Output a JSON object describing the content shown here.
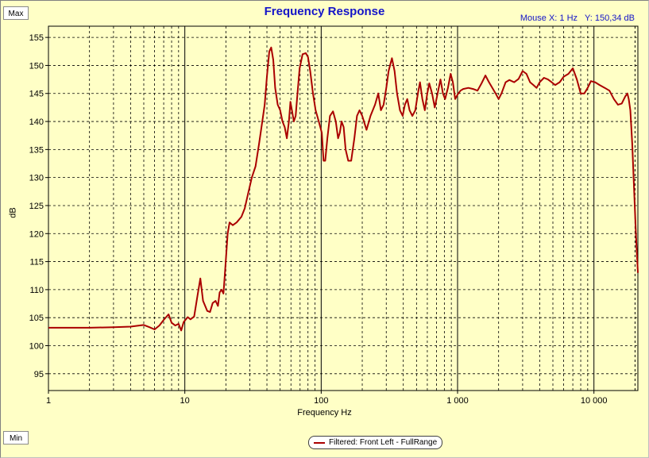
{
  "window": {
    "max_label": "Max",
    "min_label": "Min"
  },
  "readout": {
    "mouse_x": "Mouse X: 1 Hz",
    "mouse_y": "Y: 150,34 dB"
  },
  "legend": {
    "label": "Filtered: Front Left - FullRange",
    "color": "#aa0000"
  },
  "chart_data": {
    "type": "line",
    "title": "Frequency Response",
    "xlabel": "Frequency Hz",
    "ylabel": "dB",
    "x_scale": "log",
    "xlim": [
      1,
      21000
    ],
    "ylim": [
      92,
      157
    ],
    "grid": true,
    "x_tick_labels": [
      {
        "value": 1,
        "label": "1"
      },
      {
        "value": 10,
        "label": "10"
      },
      {
        "value": 100,
        "label": "100"
      },
      {
        "value": 1000,
        "label": "1 000"
      },
      {
        "value": 10000,
        "label": "10 000"
      }
    ],
    "y_ticks": [
      95,
      100,
      105,
      110,
      115,
      120,
      125,
      130,
      135,
      140,
      145,
      150,
      155
    ],
    "background": "#ffffc6",
    "series": [
      {
        "name": "Filtered: Front Left - FullRange",
        "color": "#aa0000",
        "points": [
          [
            1,
            103.2
          ],
          [
            2,
            103.2
          ],
          [
            3,
            103.3
          ],
          [
            4,
            103.4
          ],
          [
            5,
            103.7
          ],
          [
            5.5,
            103.3
          ],
          [
            6,
            102.9
          ],
          [
            6.5,
            103.6
          ],
          [
            7,
            104.6
          ],
          [
            7.6,
            105.6
          ],
          [
            8,
            104.1
          ],
          [
            8.5,
            103.6
          ],
          [
            9,
            103.9
          ],
          [
            9.4,
            102.7
          ],
          [
            9.8,
            104.2
          ],
          [
            10.5,
            105.1
          ],
          [
            11,
            104.7
          ],
          [
            11.7,
            105.2
          ],
          [
            12.4,
            109.0
          ],
          [
            13,
            112.0
          ],
          [
            13.6,
            108.0
          ],
          [
            14.6,
            106.2
          ],
          [
            15.3,
            106.0
          ],
          [
            16,
            107.6
          ],
          [
            16.8,
            108.0
          ],
          [
            17.5,
            107.1
          ],
          [
            18,
            109.5
          ],
          [
            18.6,
            110.0
          ],
          [
            19.2,
            109.3
          ],
          [
            19.7,
            113.0
          ],
          [
            20.6,
            120.0
          ],
          [
            21.3,
            122.0
          ],
          [
            22.5,
            121.5
          ],
          [
            24,
            122.0
          ],
          [
            26,
            123.0
          ],
          [
            27.5,
            124.5
          ],
          [
            29,
            127.0
          ],
          [
            31,
            130.0
          ],
          [
            33,
            132.0
          ],
          [
            35,
            136.0
          ],
          [
            37,
            140.0
          ],
          [
            38.5,
            143.0
          ],
          [
            40,
            148.0
          ],
          [
            41.6,
            152.5
          ],
          [
            43,
            153.2
          ],
          [
            44.5,
            151.0
          ],
          [
            46,
            146.0
          ],
          [
            48,
            143.0
          ],
          [
            50,
            142.0
          ],
          [
            52,
            140.0
          ],
          [
            54,
            139.0
          ],
          [
            56,
            137.0
          ],
          [
            58,
            140.0
          ],
          [
            59.5,
            143.5
          ],
          [
            61,
            142.0
          ],
          [
            63,
            140.0
          ],
          [
            65,
            141.0
          ],
          [
            67,
            145.0
          ],
          [
            69.5,
            149.5
          ],
          [
            73,
            152.0
          ],
          [
            77,
            152.2
          ],
          [
            80,
            151.5
          ],
          [
            83,
            149.0
          ],
          [
            87,
            145.0
          ],
          [
            91,
            142.0
          ],
          [
            96,
            140.0
          ],
          [
            101,
            138.0
          ],
          [
            104,
            133.0
          ],
          [
            107,
            133.0
          ],
          [
            111,
            137.0
          ],
          [
            116,
            141.0
          ],
          [
            122,
            141.8
          ],
          [
            128,
            140.0
          ],
          [
            133,
            137.0
          ],
          [
            137,
            138.0
          ],
          [
            141,
            140.0
          ],
          [
            146,
            139.0
          ],
          [
            151,
            135.0
          ],
          [
            158,
            133.0
          ],
          [
            166,
            133.0
          ],
          [
            175,
            137.0
          ],
          [
            183,
            141.0
          ],
          [
            191,
            142.0
          ],
          [
            200,
            141.0
          ],
          [
            215,
            138.5
          ],
          [
            230,
            141.0
          ],
          [
            248,
            143.0
          ],
          [
            262,
            145.0
          ],
          [
            274,
            142.0
          ],
          [
            287,
            143.0
          ],
          [
            300,
            146.0
          ],
          [
            312,
            149.0
          ],
          [
            330,
            151.3
          ],
          [
            345,
            149.0
          ],
          [
            360,
            145.0
          ],
          [
            378,
            142.0
          ],
          [
            396,
            141.0
          ],
          [
            411,
            143.0
          ],
          [
            428,
            144.0
          ],
          [
            445,
            142.0
          ],
          [
            466,
            141.0
          ],
          [
            490,
            142.0
          ],
          [
            512,
            145.0
          ],
          [
            530,
            147.0
          ],
          [
            552,
            144.0
          ],
          [
            575,
            142.0
          ],
          [
            600,
            145.0
          ],
          [
            620,
            146.8
          ],
          [
            650,
            145.0
          ],
          [
            680,
            142.5
          ],
          [
            714,
            145.0
          ],
          [
            749,
            147.5
          ],
          [
            781,
            145.0
          ],
          [
            810,
            144.0
          ],
          [
            850,
            146.0
          ],
          [
            890,
            148.5
          ],
          [
            924,
            147.0
          ],
          [
            960,
            144.0
          ],
          [
            1000,
            144.8
          ],
          [
            1050,
            145.5
          ],
          [
            1100,
            145.8
          ],
          [
            1200,
            146.0
          ],
          [
            1300,
            145.8
          ],
          [
            1400,
            145.5
          ],
          [
            1500,
            146.8
          ],
          [
            1600,
            148.2
          ],
          [
            1700,
            147.0
          ],
          [
            1800,
            146.0
          ],
          [
            1900,
            145.0
          ],
          [
            2000,
            144.0
          ],
          [
            2100,
            145.0
          ],
          [
            2250,
            147.0
          ],
          [
            2400,
            147.4
          ],
          [
            2600,
            147.0
          ],
          [
            2800,
            147.6
          ],
          [
            3000,
            149.0
          ],
          [
            3200,
            148.5
          ],
          [
            3400,
            147.0
          ],
          [
            3600,
            146.5
          ],
          [
            3800,
            146.0
          ],
          [
            4000,
            147.0
          ],
          [
            4300,
            147.8
          ],
          [
            4600,
            147.5
          ],
          [
            4900,
            147.0
          ],
          [
            5200,
            146.5
          ],
          [
            5600,
            147.0
          ],
          [
            6000,
            148.0
          ],
          [
            6500,
            148.5
          ],
          [
            7000,
            149.5
          ],
          [
            7500,
            147.5
          ],
          [
            8000,
            145.0
          ],
          [
            8500,
            145.0
          ],
          [
            9000,
            146.0
          ],
          [
            9500,
            147.2
          ],
          [
            10200,
            147.0
          ],
          [
            11000,
            146.5
          ],
          [
            12000,
            146.0
          ],
          [
            13000,
            145.5
          ],
          [
            14000,
            144.0
          ],
          [
            15000,
            143.0
          ],
          [
            16000,
            143.2
          ],
          [
            17000,
            144.5
          ],
          [
            17600,
            145.0
          ],
          [
            18000,
            144.0
          ],
          [
            18500,
            142.0
          ],
          [
            19100,
            136.0
          ],
          [
            19700,
            128.0
          ],
          [
            20300,
            120.0
          ],
          [
            21000,
            113.0
          ]
        ]
      }
    ]
  }
}
